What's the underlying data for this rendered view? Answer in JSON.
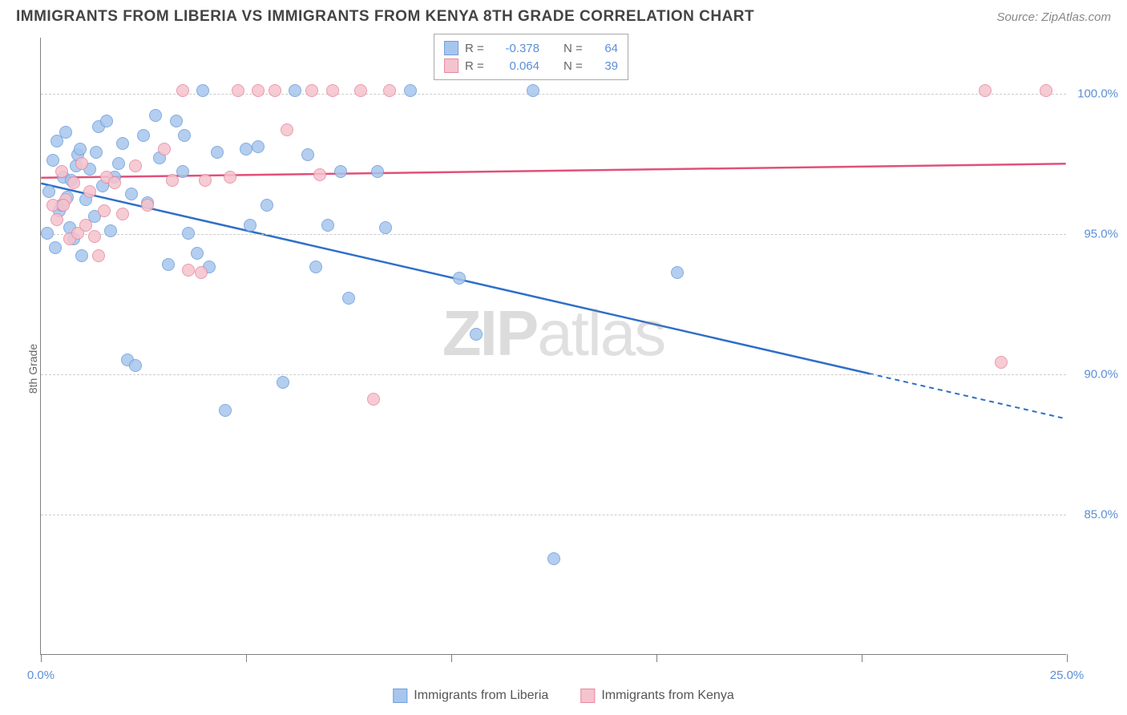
{
  "header": {
    "title": "IMMIGRANTS FROM LIBERIA VS IMMIGRANTS FROM KENYA 8TH GRADE CORRELATION CHART",
    "source": "Source: ZipAtlas.com"
  },
  "chart": {
    "type": "scatter",
    "ylabel": "8th Grade",
    "watermark_a": "ZIP",
    "watermark_b": "atlas",
    "xlim": [
      0,
      25
    ],
    "ylim": [
      80,
      102
    ],
    "ytick_positions": [
      85,
      90,
      95,
      100
    ],
    "ytick_labels": [
      "85.0%",
      "90.0%",
      "95.0%",
      "100.0%"
    ],
    "xtick_positions": [
      0,
      5,
      10,
      15,
      20,
      25
    ],
    "xtick_labels_shown": {
      "0": "0.0%",
      "25": "25.0%"
    },
    "grid_color": "#cccccc",
    "axis_color": "#808080",
    "background_color": "#ffffff",
    "tick_label_color": "#5b8fd6",
    "series": [
      {
        "name": "Immigrants from Liberia",
        "fill_color": "#a7c6ed",
        "stroke_color": "#6f9edb",
        "line_color": "#2f6fc9",
        "r_value": "-0.378",
        "n_value": "64",
        "trend": {
          "x1": 0,
          "y1": 96.8,
          "x2": 25,
          "y2": 88.4,
          "solid_until_x": 20.2
        },
        "points": [
          [
            0.15,
            95.0
          ],
          [
            0.2,
            96.5
          ],
          [
            0.3,
            97.6
          ],
          [
            0.35,
            94.5
          ],
          [
            0.4,
            98.3
          ],
          [
            0.45,
            95.8
          ],
          [
            0.5,
            96.0
          ],
          [
            0.55,
            97.0
          ],
          [
            0.6,
            98.6
          ],
          [
            0.7,
            95.2
          ],
          [
            0.75,
            96.9
          ],
          [
            0.8,
            94.8
          ],
          [
            0.85,
            97.4
          ],
          [
            0.9,
            97.8
          ],
          [
            0.95,
            98.0
          ],
          [
            1.0,
            94.2
          ],
          [
            1.1,
            96.2
          ],
          [
            1.2,
            97.3
          ],
          [
            1.3,
            95.6
          ],
          [
            1.4,
            98.8
          ],
          [
            1.5,
            96.7
          ],
          [
            1.6,
            99.0
          ],
          [
            1.7,
            95.1
          ],
          [
            1.8,
            97.0
          ],
          [
            1.9,
            97.5
          ],
          [
            2.0,
            98.2
          ],
          [
            2.1,
            90.5
          ],
          [
            2.2,
            96.4
          ],
          [
            2.3,
            90.3
          ],
          [
            2.5,
            98.5
          ],
          [
            2.6,
            96.1
          ],
          [
            2.8,
            99.2
          ],
          [
            2.9,
            97.7
          ],
          [
            3.1,
            93.9
          ],
          [
            3.3,
            99.0
          ],
          [
            3.5,
            98.5
          ],
          [
            3.6,
            95.0
          ],
          [
            3.8,
            94.3
          ],
          [
            3.95,
            100.1
          ],
          [
            4.1,
            93.8
          ],
          [
            4.3,
            97.9
          ],
          [
            4.5,
            88.7
          ],
          [
            5.0,
            98.0
          ],
          [
            5.1,
            95.3
          ],
          [
            5.3,
            98.1
          ],
          [
            5.5,
            96.0
          ],
          [
            5.9,
            89.7
          ],
          [
            6.2,
            100.1
          ],
          [
            6.5,
            97.8
          ],
          [
            6.7,
            93.8
          ],
          [
            7.0,
            95.3
          ],
          [
            7.3,
            97.2
          ],
          [
            7.5,
            92.7
          ],
          [
            8.2,
            97.2
          ],
          [
            8.4,
            95.2
          ],
          [
            9.0,
            100.1
          ],
          [
            10.2,
            93.4
          ],
          [
            10.6,
            91.4
          ],
          [
            12.0,
            100.1
          ],
          [
            12.5,
            83.4
          ],
          [
            15.5,
            93.6
          ],
          [
            3.45,
            97.2
          ],
          [
            1.35,
            97.9
          ],
          [
            0.65,
            96.3
          ]
        ]
      },
      {
        "name": "Immigrants from Kenya",
        "fill_color": "#f5c3cd",
        "stroke_color": "#e68aa0",
        "line_color": "#e0517a",
        "r_value": "0.064",
        "n_value": "39",
        "trend": {
          "x1": 0,
          "y1": 97.0,
          "x2": 25,
          "y2": 97.5,
          "solid_until_x": 25
        },
        "points": [
          [
            0.3,
            96.0
          ],
          [
            0.4,
            95.5
          ],
          [
            0.5,
            97.2
          ],
          [
            0.6,
            96.2
          ],
          [
            0.7,
            94.8
          ],
          [
            0.8,
            96.8
          ],
          [
            0.9,
            95.0
          ],
          [
            1.0,
            97.5
          ],
          [
            1.1,
            95.3
          ],
          [
            1.2,
            96.5
          ],
          [
            1.3,
            94.9
          ],
          [
            1.4,
            94.2
          ],
          [
            1.6,
            97.0
          ],
          [
            1.8,
            96.8
          ],
          [
            2.0,
            95.7
          ],
          [
            2.3,
            97.4
          ],
          [
            2.6,
            96.0
          ],
          [
            3.0,
            98.0
          ],
          [
            3.2,
            96.9
          ],
          [
            3.6,
            93.7
          ],
          [
            3.9,
            93.6
          ],
          [
            3.45,
            100.1
          ],
          [
            4.0,
            96.9
          ],
          [
            4.6,
            97.0
          ],
          [
            4.8,
            100.1
          ],
          [
            5.3,
            100.1
          ],
          [
            5.7,
            100.1
          ],
          [
            6.0,
            98.7
          ],
          [
            6.6,
            100.1
          ],
          [
            6.8,
            97.1
          ],
          [
            7.1,
            100.1
          ],
          [
            7.8,
            100.1
          ],
          [
            8.5,
            100.1
          ],
          [
            8.1,
            89.1
          ],
          [
            1.55,
            95.8
          ],
          [
            0.55,
            96.0
          ],
          [
            23.0,
            100.1
          ],
          [
            23.4,
            90.4
          ],
          [
            24.5,
            100.1
          ]
        ]
      }
    ],
    "legend_top": {
      "r_label": "R =",
      "n_label": "N ="
    },
    "bottom_legend": [
      {
        "label": "Immigrants from Liberia",
        "fill": "#a7c6ed",
        "stroke": "#6f9edb"
      },
      {
        "label": "Immigrants from Kenya",
        "fill": "#f5c3cd",
        "stroke": "#e68aa0"
      }
    ]
  }
}
